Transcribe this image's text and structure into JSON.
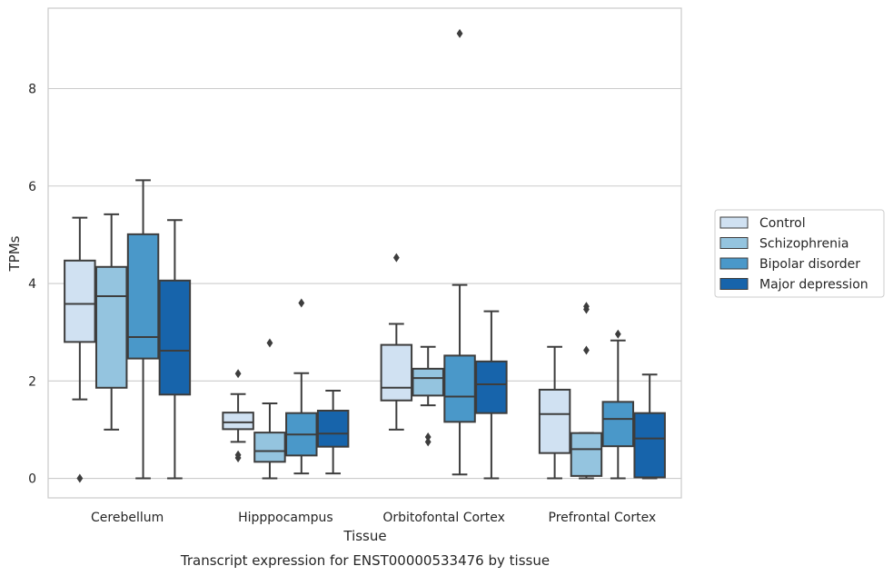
{
  "caption": "Transcript expression for ENST00000533476 by tissue",
  "colors": [
    "#d0e1f2",
    "#94c4df",
    "#4a98c9",
    "#1764ab"
  ],
  "chart_data": {
    "type": "box",
    "xlabel": "Tissue",
    "ylabel": "TPMs",
    "ylim": [
      -0.4,
      9.65
    ],
    "yticks": [
      0,
      2,
      4,
      6,
      8
    ],
    "grid": "horizontal",
    "legend_position": "right",
    "categories": [
      "Cerebellum",
      "Hipppocampus",
      "Orbitofontal Cortex",
      "Prefrontal Cortex"
    ],
    "series": [
      {
        "name": "Control",
        "boxes": [
          {
            "whislo": 1.62,
            "q1": 2.8,
            "med": 3.58,
            "q3": 4.47,
            "whishi": 5.35,
            "fliers": [
              0.0
            ]
          },
          {
            "whislo": 0.75,
            "q1": 1.01,
            "med": 1.15,
            "q3": 1.35,
            "whishi": 1.73,
            "fliers": [
              2.15,
              0.48,
              0.42
            ]
          },
          {
            "whislo": 1.0,
            "q1": 1.6,
            "med": 1.86,
            "q3": 2.74,
            "whishi": 3.17,
            "fliers": [
              4.53
            ]
          },
          {
            "whislo": 0.0,
            "q1": 0.52,
            "med": 1.32,
            "q3": 1.82,
            "whishi": 2.7,
            "fliers": []
          }
        ]
      },
      {
        "name": "Schizophrenia",
        "boxes": [
          {
            "whislo": 1.0,
            "q1": 1.86,
            "med": 3.74,
            "q3": 4.34,
            "whishi": 5.42,
            "fliers": []
          },
          {
            "whislo": 0.0,
            "q1": 0.34,
            "med": 0.56,
            "q3": 0.94,
            "whishi": 1.54,
            "fliers": [
              2.78
            ]
          },
          {
            "whislo": 1.5,
            "q1": 1.7,
            "med": 2.06,
            "q3": 2.25,
            "whishi": 2.7,
            "fliers": [
              0.85,
              0.75
            ]
          },
          {
            "whislo": 0.0,
            "q1": 0.05,
            "med": 0.6,
            "q3": 0.93,
            "whishi": 0.93,
            "fliers": [
              3.53,
              3.47,
              2.63
            ]
          }
        ]
      },
      {
        "name": "Bipolar disorder",
        "boxes": [
          {
            "whislo": 0.0,
            "q1": 2.46,
            "med": 2.9,
            "q3": 5.01,
            "whishi": 6.12,
            "fliers": []
          },
          {
            "whislo": 0.1,
            "q1": 0.47,
            "med": 0.9,
            "q3": 1.34,
            "whishi": 2.16,
            "fliers": [
              3.6
            ]
          },
          {
            "whislo": 0.08,
            "q1": 1.16,
            "med": 1.68,
            "q3": 2.52,
            "whishi": 3.97,
            "fliers": [
              9.13
            ]
          },
          {
            "whislo": 0.0,
            "q1": 0.66,
            "med": 1.22,
            "q3": 1.57,
            "whishi": 2.83,
            "fliers": [
              2.96
            ]
          }
        ]
      },
      {
        "name": "Major depression",
        "boxes": [
          {
            "whislo": 0.0,
            "q1": 1.72,
            "med": 2.62,
            "q3": 4.06,
            "whishi": 5.3,
            "fliers": []
          },
          {
            "whislo": 0.1,
            "q1": 0.65,
            "med": 0.92,
            "q3": 1.39,
            "whishi": 1.8,
            "fliers": []
          },
          {
            "whislo": 0.0,
            "q1": 1.34,
            "med": 1.93,
            "q3": 2.4,
            "whishi": 3.43,
            "fliers": []
          },
          {
            "whislo": 0.0,
            "q1": 0.02,
            "med": 0.82,
            "q3": 1.34,
            "whishi": 2.13,
            "fliers": []
          }
        ]
      }
    ]
  }
}
